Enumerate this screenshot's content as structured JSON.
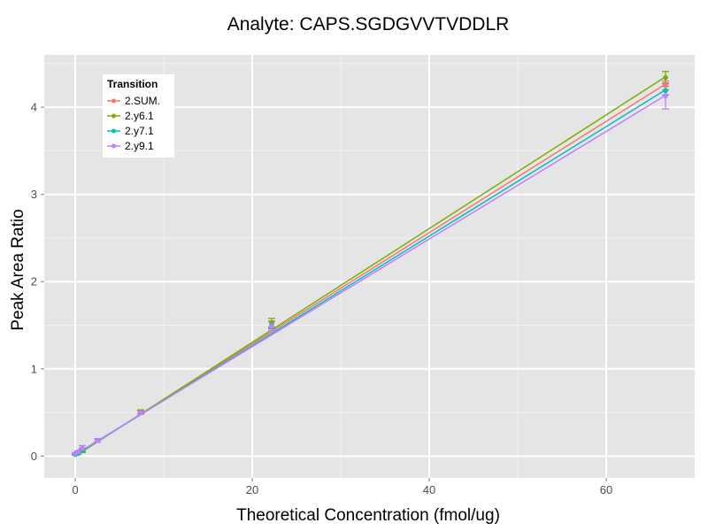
{
  "chart_data": {
    "type": "line",
    "title": "Analyte: CAPS.SGDGVVTVDDLR",
    "xlabel": "Theoretical Concentration (fmol/ug)",
    "ylabel": "Peak Area Ratio",
    "xlim": [
      -3.5,
      70
    ],
    "ylim": [
      -0.25,
      4.6
    ],
    "x_ticks": [
      0,
      20,
      40,
      60
    ],
    "y_ticks": [
      0,
      1,
      2,
      3,
      4
    ],
    "grid": true,
    "legend": {
      "title": "Transition",
      "position": "top-left"
    },
    "series": [
      {
        "name": "2.SUM.",
        "color": "#F8766D",
        "x": [
          0,
          0.3,
          0.8,
          2.5,
          7.4,
          22.2,
          66.7
        ],
        "y": [
          0.02,
          0.03,
          0.07,
          0.18,
          0.51,
          1.51,
          4.25
        ],
        "err": [
          0.01,
          0.01,
          0.02,
          0.02,
          0.02,
          0.04,
          0.05
        ],
        "fit": {
          "slope": 0.0638,
          "intercept": 0.01
        }
      },
      {
        "name": "2.y6.1",
        "color": "#7CAE00",
        "x": [
          0,
          0.3,
          0.8,
          2.5,
          7.4,
          22.2,
          66.7
        ],
        "y": [
          0.02,
          0.03,
          0.06,
          0.18,
          0.51,
          1.53,
          4.34
        ],
        "err": [
          0.01,
          0.01,
          0.02,
          0.02,
          0.02,
          0.05,
          0.07
        ],
        "fit": {
          "slope": 0.0652,
          "intercept": 0.0
        }
      },
      {
        "name": "2.y7.1",
        "color": "#00BFC4",
        "x": [
          0,
          0.3,
          0.8,
          2.5,
          7.4,
          22.2,
          66.7
        ],
        "y": [
          0.02,
          0.03,
          0.07,
          0.18,
          0.5,
          1.5,
          4.19
        ],
        "err": [
          0.01,
          0.01,
          0.02,
          0.02,
          0.02,
          0.04,
          0.05
        ],
        "fit": {
          "slope": 0.0628,
          "intercept": 0.01
        }
      },
      {
        "name": "2.y9.1",
        "color": "#C77CFF",
        "x": [
          0,
          0.3,
          0.8,
          2.5,
          7.4,
          22.2,
          66.7
        ],
        "y": [
          0.03,
          0.05,
          0.09,
          0.18,
          0.5,
          1.49,
          4.13
        ],
        "err": [
          0.01,
          0.01,
          0.03,
          0.02,
          0.02,
          0.05,
          0.15
        ],
        "fit": {
          "slope": 0.0617,
          "intercept": 0.02
        }
      }
    ]
  }
}
